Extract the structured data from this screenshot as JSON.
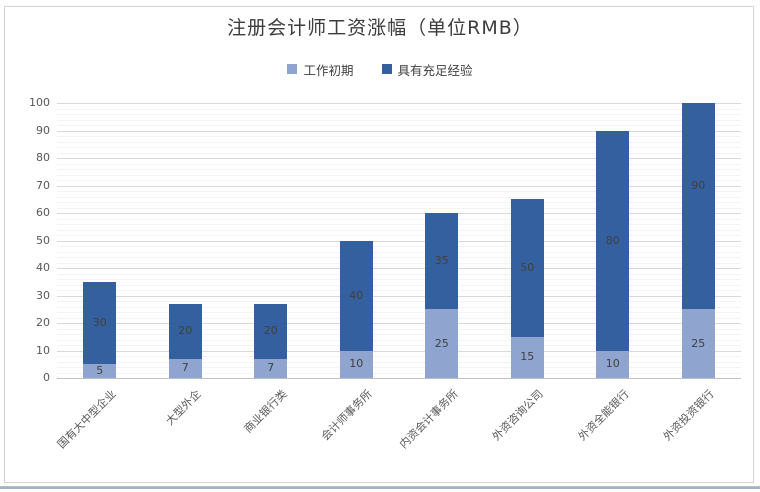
{
  "chart": {
    "title": "注册会计师工资涨幅（单位RMB）"
  },
  "chart_data": {
    "type": "bar",
    "stacked": true,
    "title": "注册会计师工资涨幅（单位RMB）",
    "categories": [
      "国有大中型企业",
      "大型外企",
      "商业银行类",
      "会计师事务所",
      "内资会计事务所",
      "外资咨询公司",
      "外资全能银行",
      "外资投资银行"
    ],
    "series": [
      {
        "name": "工作初期",
        "color": "#8fa5d0",
        "values": [
          5,
          7,
          7,
          10,
          25,
          15,
          10,
          25
        ]
      },
      {
        "name": "具有充足经验",
        "color": "#35609f",
        "values": [
          30,
          20,
          20,
          40,
          35,
          50,
          80,
          90
        ]
      }
    ],
    "data_labels": true,
    "ylim": [
      0,
      100
    ],
    "y_major_unit": 10,
    "y_minor_unit": 2,
    "grid": true,
    "legend_position": "top",
    "clip_to_ylim": true
  },
  "colors": {
    "title": "#3d3d3d",
    "legend_label": "#404040",
    "grid_major": "#d9d9d9",
    "grid_minor": "#f3f3f3",
    "axis_line": "#bfbfbf",
    "tick_label": "#595959",
    "data_label": "#3f3f3f",
    "frame_border": "#d3d3d3",
    "bottom_strip": "#a2b2c8"
  }
}
